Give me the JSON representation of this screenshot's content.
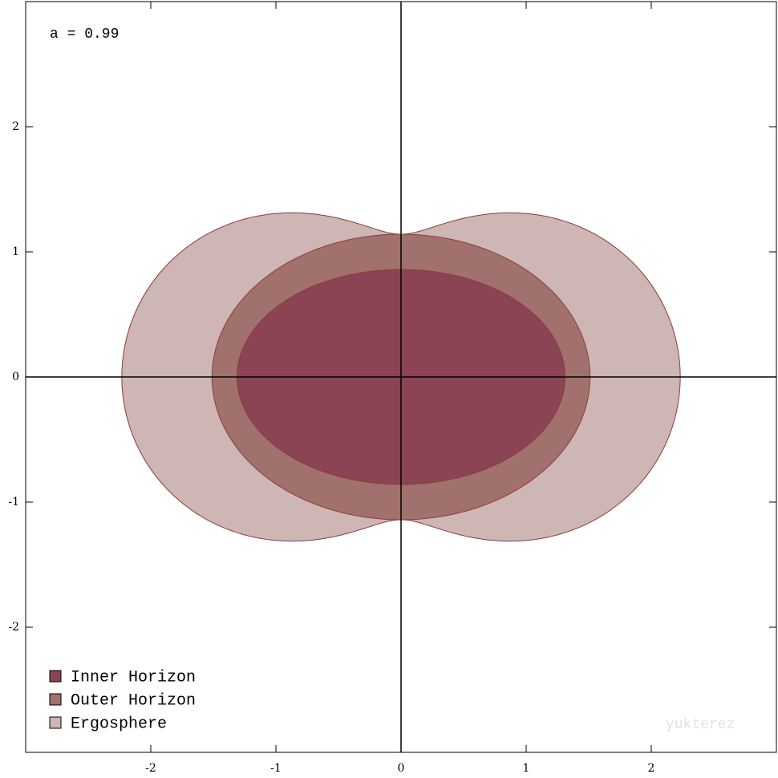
{
  "chart_data": {
    "type": "region",
    "annotation": {
      "value": 0.99,
      "label": "a = 0.99"
    },
    "watermark": "yukterez",
    "series": [
      {
        "name": "Inner Horizon",
        "color": "#8a4454"
      },
      {
        "name": "Outer Horizon",
        "color": "#a1716d"
      },
      {
        "name": "Ergosphere",
        "color": "#cdb6b4"
      }
    ],
    "edge_color": "#8b3b3b",
    "legend": "bottom-left",
    "xlim": [
      -3,
      3
    ],
    "ylim": [
      -3,
      3
    ],
    "xticks": [
      -2,
      -1,
      0,
      1,
      2
    ],
    "yticks": [
      -2,
      -1,
      0,
      1,
      2
    ]
  }
}
